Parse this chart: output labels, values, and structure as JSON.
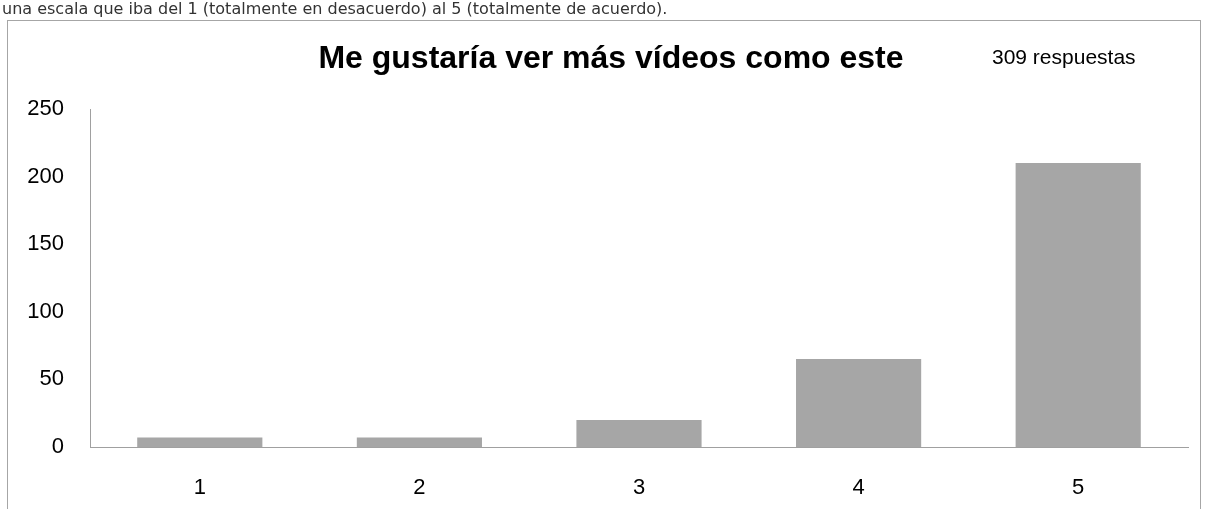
{
  "chart_data": {
    "type": "bar",
    "title": "Me gustaría ver más vídeos como este",
    "subtitle": "309 respuestas",
    "annotations": [
      "una escala que iba del 1 (totalmente en desacuerdo) al 5 (totalmente de acuerdo)."
    ],
    "categories": [
      "1",
      "2",
      "3",
      "4",
      "5"
    ],
    "values": [
      7,
      7,
      20,
      65,
      210
    ],
    "color": "#a6a6a6",
    "ylim": [
      0,
      250
    ],
    "yticks": [
      0,
      50,
      100,
      150,
      200,
      250
    ],
    "grid": false
  }
}
